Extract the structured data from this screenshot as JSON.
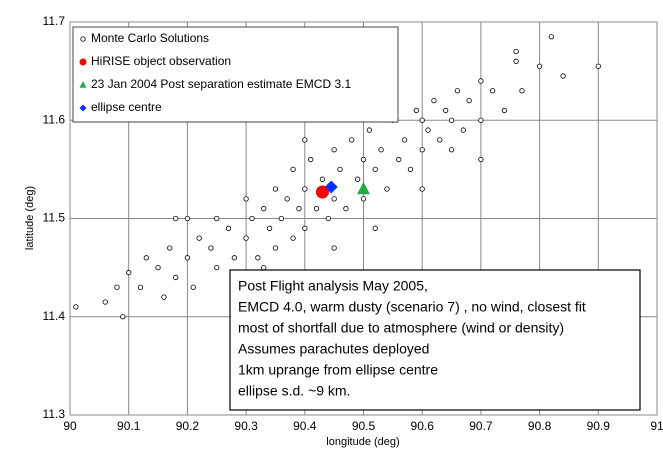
{
  "chart_data": {
    "type": "scatter",
    "xlabel": "longitude (deg)",
    "ylabel": "latitude (deg)",
    "xlim": [
      90,
      91
    ],
    "ylim": [
      11.3,
      11.7
    ],
    "xticks": [
      90,
      90.1,
      90.2,
      90.3,
      90.4,
      90.5,
      90.6,
      90.7,
      90.8,
      90.9,
      91
    ],
    "yticks": [
      11.3,
      11.4,
      11.5,
      11.6,
      11.7
    ],
    "grid": true,
    "legend": "upper left",
    "series": [
      {
        "name": "Monte Carlo Solutions",
        "color": "#000000",
        "marker": "circle-open",
        "x": [
          90.01,
          90.06,
          90.08,
          90.09,
          90.1,
          90.12,
          90.13,
          90.15,
          90.16,
          90.17,
          90.18,
          90.2,
          90.2,
          90.21,
          90.22,
          90.24,
          90.25,
          90.25,
          90.27,
          90.28,
          90.3,
          90.3,
          90.31,
          90.32,
          90.33,
          90.34,
          90.35,
          90.35,
          90.36,
          90.37,
          90.38,
          90.38,
          90.39,
          90.4,
          90.4,
          90.41,
          90.42,
          90.43,
          90.44,
          90.45,
          90.45,
          90.46,
          90.47,
          90.48,
          90.49,
          90.5,
          90.5,
          90.51,
          90.52,
          90.53,
          90.54,
          90.55,
          90.56,
          90.57,
          90.58,
          90.59,
          90.6,
          90.6,
          90.61,
          90.62,
          90.63,
          90.64,
          90.65,
          90.66,
          90.67,
          90.68,
          90.7,
          90.7,
          90.72,
          90.74,
          90.76,
          90.76,
          90.77,
          90.8,
          90.82,
          90.84,
          90.9,
          90.7,
          90.6,
          90.28,
          90.18,
          90.45,
          90.55,
          90.4,
          90.33,
          90.65,
          90.52
        ],
        "values": [
          11.41,
          11.415,
          11.43,
          11.4,
          11.445,
          11.43,
          11.46,
          11.45,
          11.42,
          11.47,
          11.44,
          11.5,
          11.46,
          11.43,
          11.48,
          11.47,
          11.45,
          11.5,
          11.49,
          11.46,
          11.52,
          11.48,
          11.5,
          11.46,
          11.51,
          11.49,
          11.53,
          11.47,
          11.5,
          11.52,
          11.48,
          11.55,
          11.51,
          11.53,
          11.49,
          11.56,
          11.51,
          11.54,
          11.5,
          11.57,
          11.52,
          11.55,
          11.51,
          11.58,
          11.54,
          11.56,
          11.52,
          11.59,
          11.55,
          11.57,
          11.53,
          11.6,
          11.56,
          11.58,
          11.55,
          11.61,
          11.57,
          11.6,
          11.59,
          11.62,
          11.58,
          11.61,
          11.6,
          11.63,
          11.59,
          11.62,
          11.64,
          11.6,
          11.63,
          11.61,
          11.66,
          11.67,
          11.63,
          11.655,
          11.685,
          11.645,
          11.655,
          11.56,
          11.53,
          11.43,
          11.5,
          11.47,
          11.63,
          11.58,
          11.45,
          11.57,
          11.49
        ]
      },
      {
        "name": "HiRISE object observation",
        "color": "#ff0000",
        "marker": "circle",
        "x": [
          90.43
        ],
        "values": [
          11.527
        ]
      },
      {
        "name": "23 Jan 2004 Post separation estimate EMCD 3.1",
        "color": "#22aa44",
        "marker": "triangle",
        "x": [
          90.5
        ],
        "values": [
          11.53
        ]
      },
      {
        "name": "ellipse centre",
        "color": "#0033ff",
        "marker": "diamond",
        "x": [
          90.445
        ],
        "values": [
          11.532
        ]
      }
    ],
    "annotation": [
      {
        "text": "Post Flight analysis May 2005,",
        "color": "#000000"
      },
      {
        "text": "EMCD 4.0, warm dusty (scenario 7) , no wind,  closest fit",
        "color": "#1a1aff"
      },
      {
        "text": "most of shortfall due to atmosphere  (wind or density)",
        "color": "#000000"
      },
      {
        "text": "Assumes parachutes deployed",
        "color": "#000000"
      },
      {
        "text": "1km uprange from ellipse centre",
        "color": "#000000"
      },
      {
        "text": "ellipse s.d. ~9 km.",
        "color": "#000000"
      }
    ]
  }
}
